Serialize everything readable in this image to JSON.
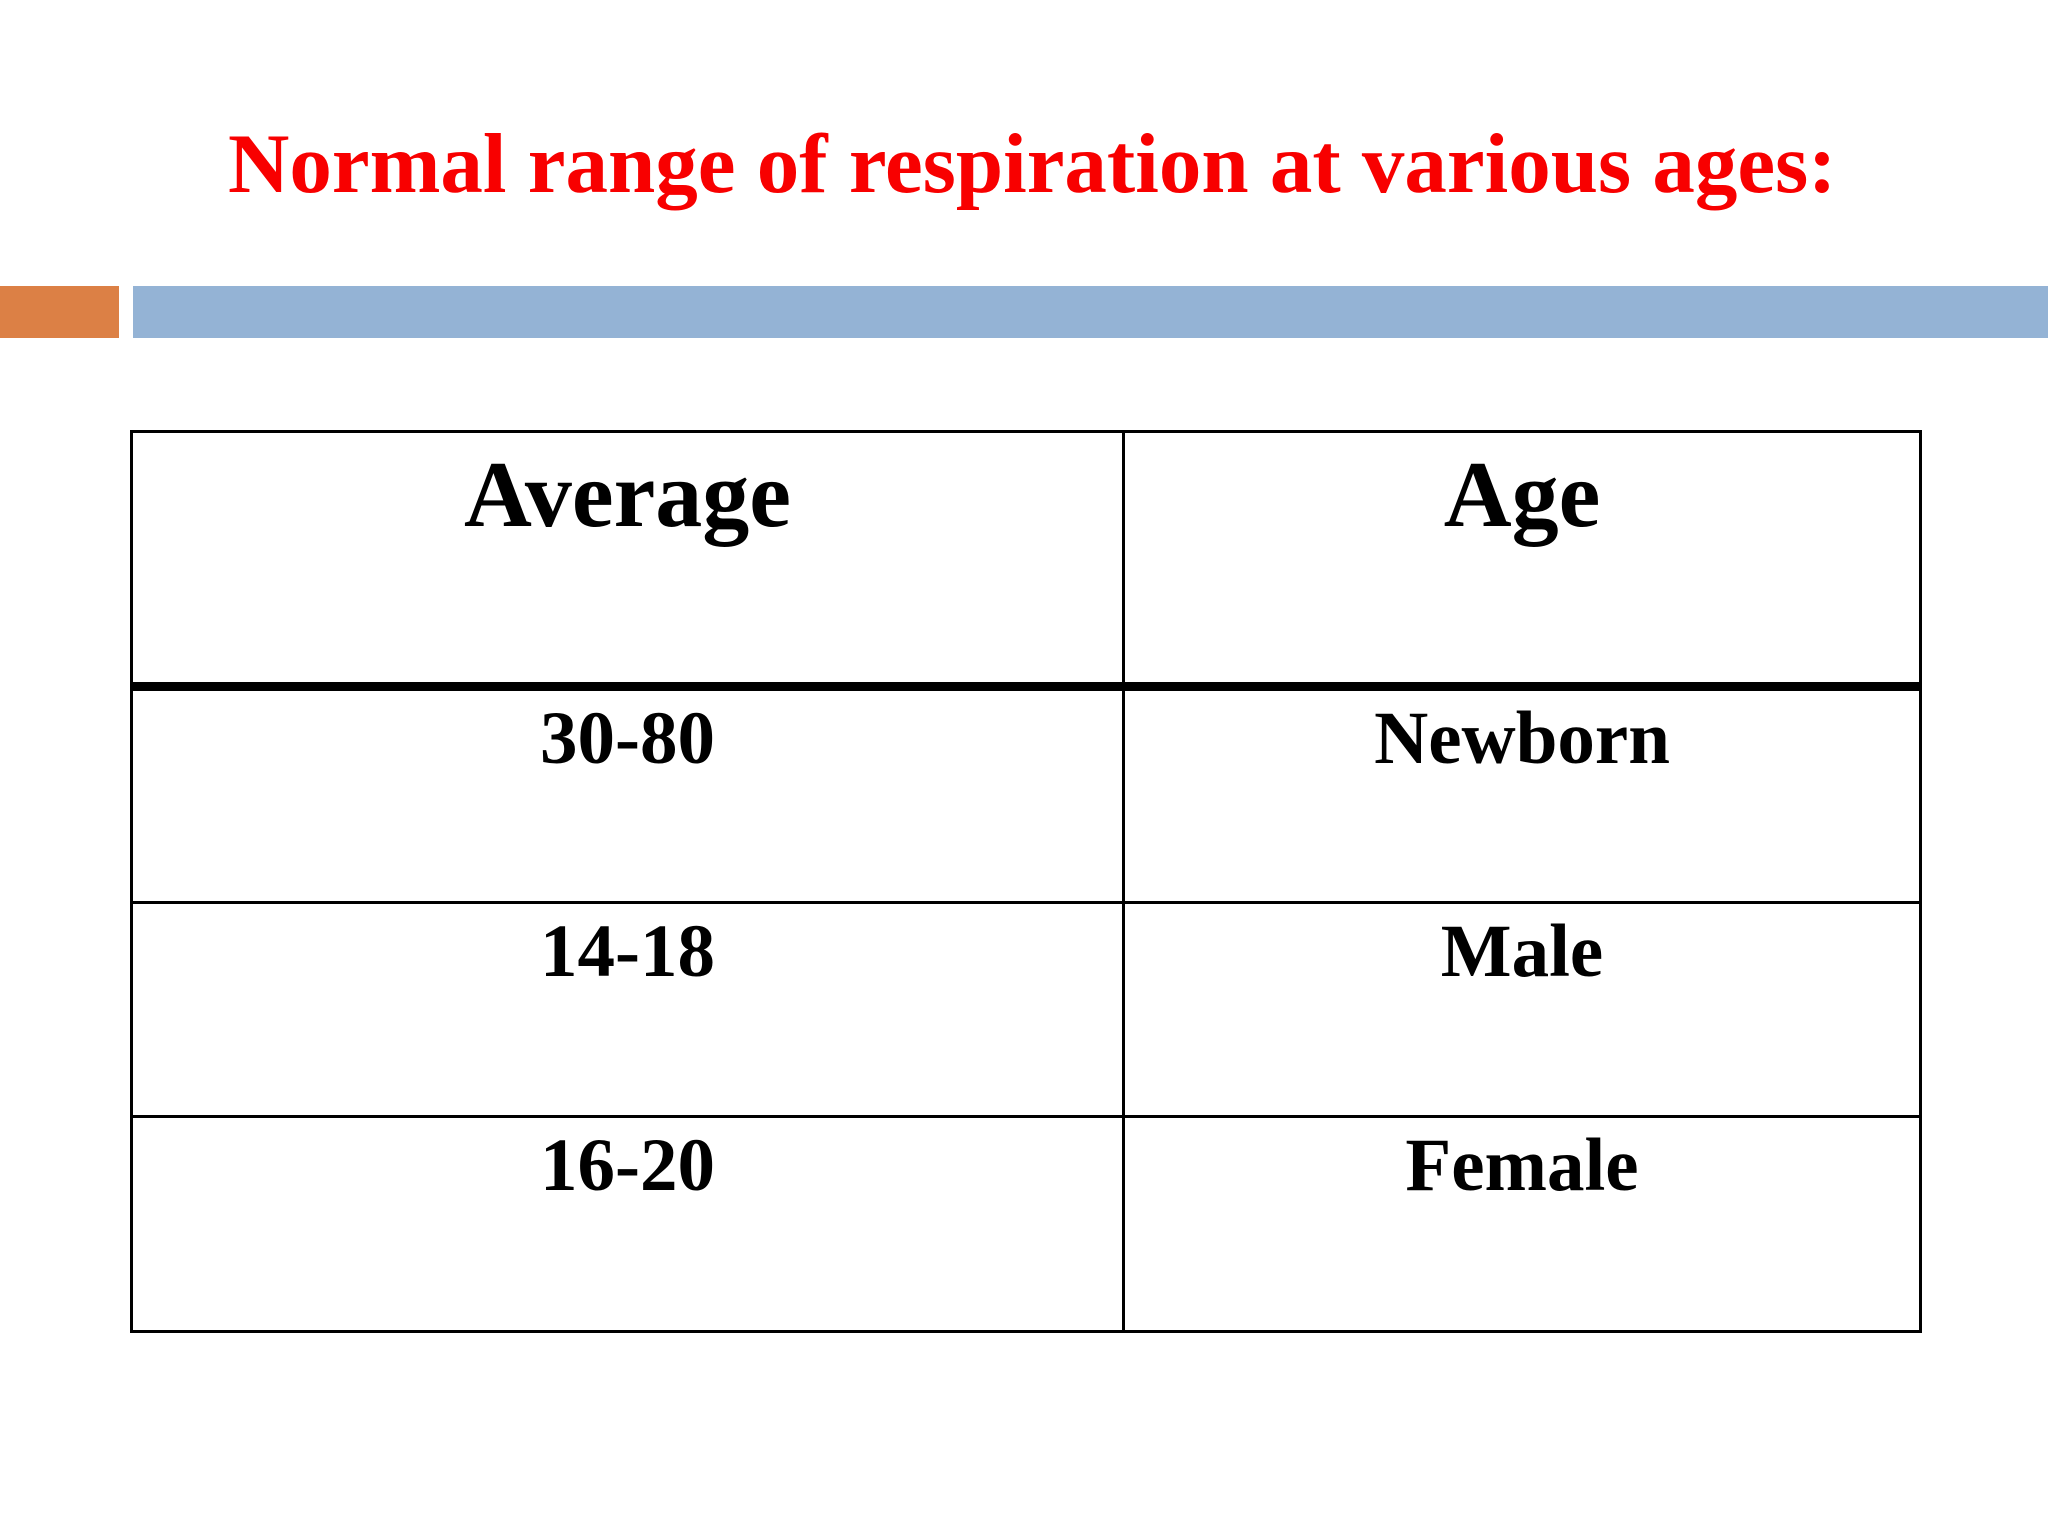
{
  "slide": {
    "title": "Normal range of respiration at various ages:",
    "title_color": "#f80000",
    "background_color": "#ffffff"
  },
  "accent_bar": {
    "orange_color": "#dc8045",
    "blue_color": "#94b3d5"
  },
  "table": {
    "border_color": "#000000",
    "columns": [
      "Average",
      "Age"
    ],
    "rows": [
      {
        "average": "30-80",
        "age": "Newborn"
      },
      {
        "average": "14-18",
        "age": "Male"
      },
      {
        "average": "16-20",
        "age": "Female"
      }
    ]
  },
  "chart_data": {
    "type": "table",
    "title": "Normal range of respiration at various ages:",
    "columns": [
      "Average",
      "Age"
    ],
    "rows": [
      [
        "30-80",
        "Newborn"
      ],
      [
        "14-18",
        "Male"
      ],
      [
        "16-20",
        "Female"
      ]
    ]
  }
}
